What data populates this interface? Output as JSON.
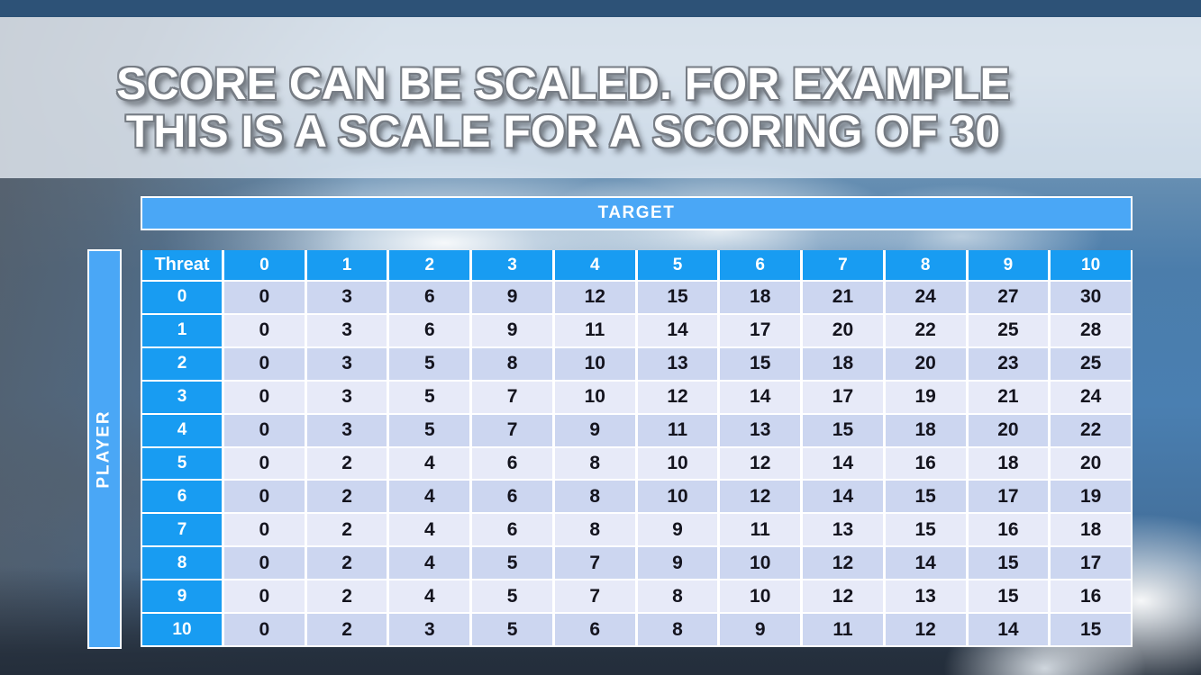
{
  "slide": {
    "title_line1": "SCORE CAN BE SCALED. FOR EXAMPLE",
    "title_line2": "THIS IS A SCALE FOR A SCORING OF 30"
  },
  "matrix": {
    "top_header": "TARGET",
    "left_header": "PLAYER",
    "corner_header": "Threat",
    "col_headers": [
      "0",
      "1",
      "2",
      "3",
      "4",
      "5",
      "6",
      "7",
      "8",
      "9",
      "10"
    ],
    "row_headers": [
      "0",
      "1",
      "2",
      "3",
      "4",
      "5",
      "6",
      "7",
      "8",
      "9",
      "10"
    ],
    "rows": [
      [
        0,
        3,
        6,
        9,
        12,
        15,
        18,
        21,
        24,
        27,
        30
      ],
      [
        0,
        3,
        6,
        9,
        11,
        14,
        17,
        20,
        22,
        25,
        28
      ],
      [
        0,
        3,
        5,
        8,
        10,
        13,
        15,
        18,
        20,
        23,
        25
      ],
      [
        0,
        3,
        5,
        7,
        10,
        12,
        14,
        17,
        19,
        21,
        24
      ],
      [
        0,
        3,
        5,
        7,
        9,
        11,
        13,
        15,
        18,
        20,
        22
      ],
      [
        0,
        2,
        4,
        6,
        8,
        10,
        12,
        14,
        16,
        18,
        20
      ],
      [
        0,
        2,
        4,
        6,
        8,
        10,
        12,
        14,
        15,
        17,
        19
      ],
      [
        0,
        2,
        4,
        6,
        8,
        9,
        11,
        13,
        15,
        16,
        18
      ],
      [
        0,
        2,
        4,
        5,
        7,
        9,
        10,
        12,
        14,
        15,
        17
      ],
      [
        0,
        2,
        4,
        5,
        7,
        8,
        10,
        12,
        13,
        15,
        16
      ],
      [
        0,
        2,
        3,
        5,
        6,
        8,
        9,
        11,
        12,
        14,
        15
      ]
    ]
  },
  "colors": {
    "header_blue": "#189cf2",
    "bar_blue": "#4aa7f6",
    "row_even": "#ccd6f0",
    "row_odd": "#e7eaf8",
    "cell_text": "#14141e"
  },
  "chart_data": {
    "type": "table",
    "title": "Scale for a scoring of 30",
    "columns_axis": "TARGET",
    "rows_axis": "PLAYER",
    "corner_label": "Threat",
    "categories": [
      "0",
      "1",
      "2",
      "3",
      "4",
      "5",
      "6",
      "7",
      "8",
      "9",
      "10"
    ],
    "series": [
      {
        "name": "0",
        "values": [
          0,
          3,
          6,
          9,
          12,
          15,
          18,
          21,
          24,
          27,
          30
        ]
      },
      {
        "name": "1",
        "values": [
          0,
          3,
          6,
          9,
          11,
          14,
          17,
          20,
          22,
          25,
          28
        ]
      },
      {
        "name": "2",
        "values": [
          0,
          3,
          5,
          8,
          10,
          13,
          15,
          18,
          20,
          23,
          25
        ]
      },
      {
        "name": "3",
        "values": [
          0,
          3,
          5,
          7,
          10,
          12,
          14,
          17,
          19,
          21,
          24
        ]
      },
      {
        "name": "4",
        "values": [
          0,
          3,
          5,
          7,
          9,
          11,
          13,
          15,
          18,
          20,
          22
        ]
      },
      {
        "name": "5",
        "values": [
          0,
          2,
          4,
          6,
          8,
          10,
          12,
          14,
          16,
          18,
          20
        ]
      },
      {
        "name": "6",
        "values": [
          0,
          2,
          4,
          6,
          8,
          10,
          12,
          14,
          15,
          17,
          19
        ]
      },
      {
        "name": "7",
        "values": [
          0,
          2,
          4,
          6,
          8,
          9,
          11,
          13,
          15,
          16,
          18
        ]
      },
      {
        "name": "8",
        "values": [
          0,
          2,
          4,
          5,
          7,
          9,
          10,
          12,
          14,
          15,
          17
        ]
      },
      {
        "name": "9",
        "values": [
          0,
          2,
          4,
          5,
          7,
          8,
          10,
          12,
          13,
          15,
          16
        ]
      },
      {
        "name": "10",
        "values": [
          0,
          2,
          3,
          5,
          6,
          8,
          9,
          11,
          12,
          14,
          15
        ]
      }
    ]
  }
}
